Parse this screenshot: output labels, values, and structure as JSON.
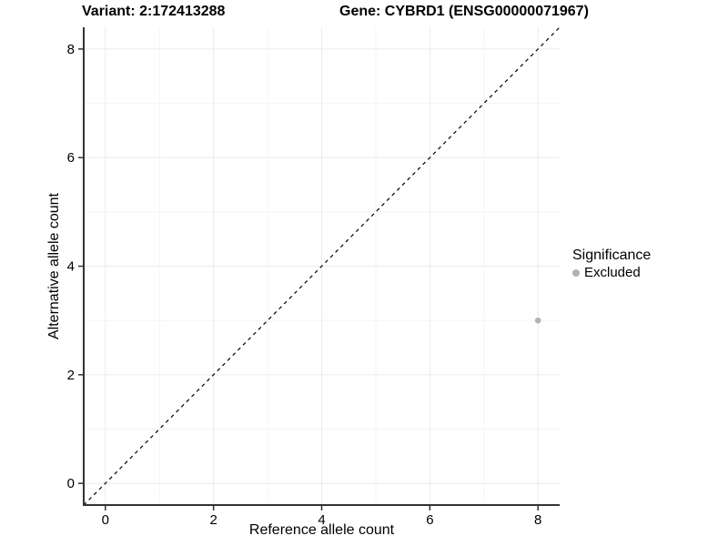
{
  "header": {
    "variant_title": "Variant: 2:172413288",
    "gene_title": "Gene: CYBRD1 (ENSG00000071967)"
  },
  "legend": {
    "title": "Significance",
    "items": [
      {
        "label": "Excluded",
        "color": "#b3b3b3"
      }
    ]
  },
  "colors": {
    "background": "#ffffff",
    "axis": "#333333",
    "tick": "#333333",
    "text": "#000000",
    "grid_major": "#ebebeb",
    "grid_minor": "#f4f4f4",
    "identity_line": "#000000",
    "point": "#b3b3b3"
  },
  "chart_data": {
    "type": "scatter",
    "title": "Variant: 2:172413288    Gene: CYBRD1 (ENSG00000071967)",
    "xlabel": "Reference allele count",
    "ylabel": "Alternative allele count",
    "xlim": [
      -0.4,
      8.4
    ],
    "ylim": [
      -0.4,
      8.4
    ],
    "x_ticks": [
      0,
      2,
      4,
      6,
      8
    ],
    "y_ticks": [
      0,
      2,
      4,
      6,
      8
    ],
    "x_tick_labels": [
      "0",
      "2",
      "4",
      "6",
      "8"
    ],
    "y_tick_labels": [
      "0",
      "2",
      "4",
      "6",
      "8"
    ],
    "grid": {
      "major": [
        0,
        2,
        4,
        6,
        8
      ],
      "minor": [
        1,
        3,
        5,
        7
      ]
    },
    "series": [
      {
        "name": "Excluded",
        "color": "#b3b3b3",
        "points": [
          {
            "x": 8,
            "y": 3
          }
        ]
      }
    ],
    "reference_line": {
      "kind": "identity",
      "slope": 1,
      "intercept": 0,
      "style": "dashed",
      "color": "#000000"
    },
    "legend": {
      "title": "Significance",
      "position": "right",
      "items": [
        "Excluded"
      ]
    }
  }
}
